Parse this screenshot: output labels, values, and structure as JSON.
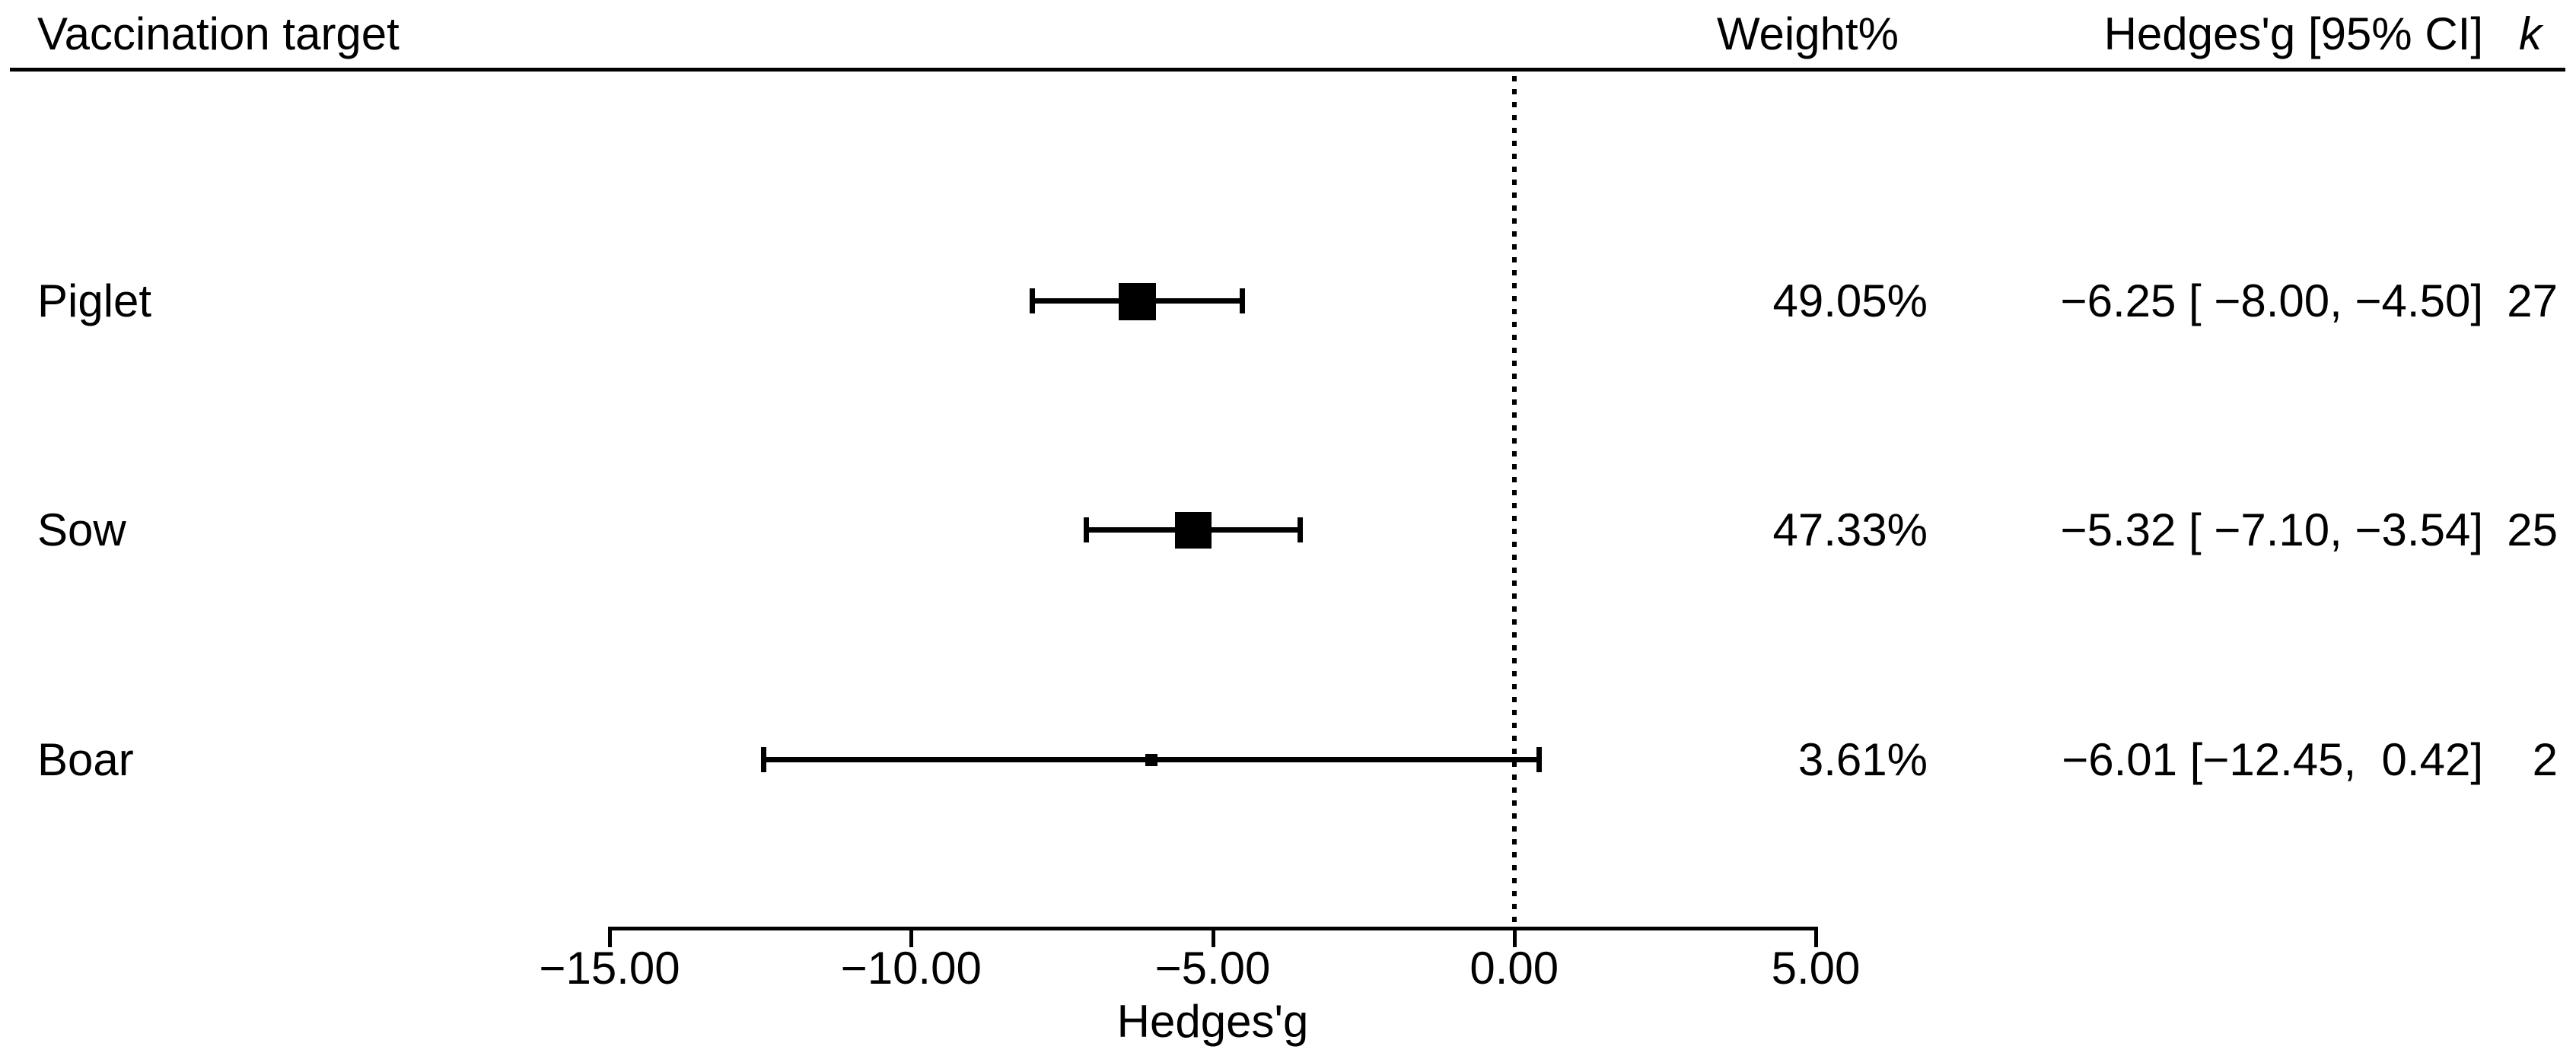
{
  "colors": {
    "foreground": "#000000",
    "background": "#ffffff"
  },
  "header": {
    "target_label": "Vaccination target",
    "weight_label": "Weight%",
    "ci_label": "Hedges'g [95% CI]",
    "k_label": "k"
  },
  "chart_data": {
    "type": "forest",
    "title": "",
    "xlabel": "Hedges'g",
    "xlim": [
      -15,
      5
    ],
    "zero_line_value": 0,
    "grid": false,
    "x_ticks": [
      {
        "value": -15,
        "label": "−15.00"
      },
      {
        "value": -10,
        "label": "−10.00"
      },
      {
        "value": -5,
        "label": "−5.00"
      },
      {
        "value": 0,
        "label": "0.00"
      },
      {
        "value": 5,
        "label": "5.00"
      }
    ],
    "rows": [
      {
        "label": "Piglet",
        "g": -6.25,
        "ci_low": -8.0,
        "ci_high": -4.5,
        "weight_pct": 49.05,
        "k": 27,
        "weight_text": "49.05%",
        "ci_text": "−6.25 [ −8.00, −4.50]",
        "k_text": "27"
      },
      {
        "label": "Sow",
        "g": -5.32,
        "ci_low": -7.1,
        "ci_high": -3.54,
        "weight_pct": 47.33,
        "k": 25,
        "weight_text": "47.33%",
        "ci_text": "−5.32 [ −7.10, −3.54]",
        "k_text": "25"
      },
      {
        "label": "Boar",
        "g": -6.01,
        "ci_low": -12.45,
        "ci_high": 0.42,
        "weight_pct": 3.61,
        "k": 2,
        "weight_text": "3.61%",
        "ci_text": "−6.01 [−12.45,  0.42]",
        "k_text": "2"
      }
    ]
  }
}
